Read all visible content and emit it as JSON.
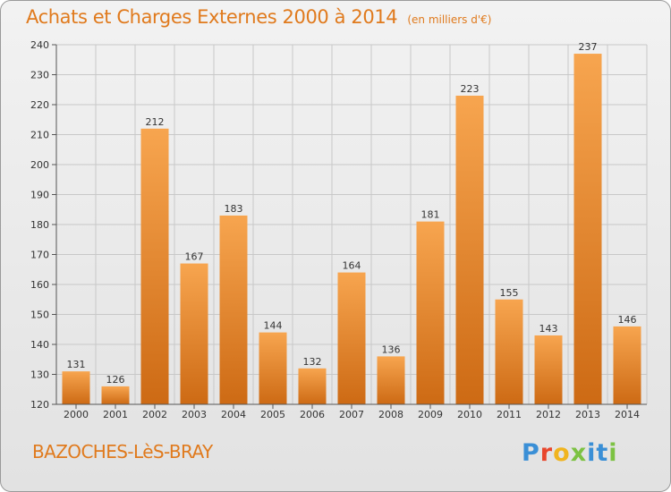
{
  "chart_data": {
    "type": "bar",
    "title": "Achats et Charges Externes 2000 à 2014",
    "unit": "(en milliers d'€)",
    "categories": [
      "2000",
      "2001",
      "2002",
      "2003",
      "2004",
      "2005",
      "2006",
      "2007",
      "2008",
      "2009",
      "2010",
      "2011",
      "2012",
      "2013",
      "2014"
    ],
    "values": [
      131,
      126,
      212,
      167,
      183,
      144,
      132,
      164,
      136,
      181,
      223,
      155,
      143,
      237,
      146
    ],
    "ylim": [
      120,
      240
    ],
    "yticks": [
      120,
      130,
      140,
      150,
      160,
      170,
      180,
      190,
      200,
      210,
      220,
      230,
      240
    ],
    "grid": true,
    "bar_color_top": "#f7a54f",
    "bar_color_bottom": "#cd6a14"
  },
  "footer": {
    "commune": "BAZOCHES-LèS-BRAY",
    "logo": "Proxiti"
  },
  "colors": {
    "accent": "#e07a1d",
    "grid": "#c8c8c8"
  }
}
